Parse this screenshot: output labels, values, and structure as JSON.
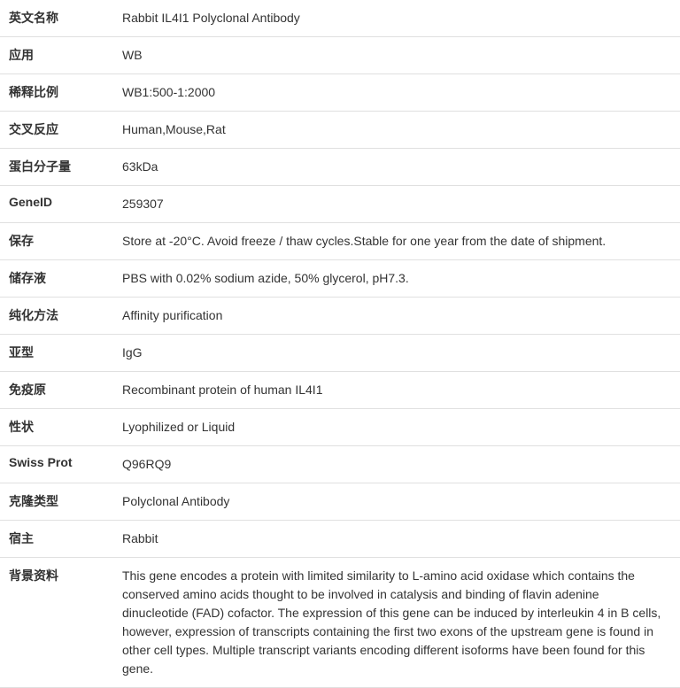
{
  "rows": [
    {
      "label": "英文名称",
      "value": "Rabbit IL4I1 Polyclonal Antibody"
    },
    {
      "label": "应用",
      "value": "WB"
    },
    {
      "label": "稀释比例",
      "value": "WB1:500-1:2000"
    },
    {
      "label": "交叉反应",
      "value": "Human,Mouse,Rat"
    },
    {
      "label": "蛋白分子量",
      "value": "63kDa"
    },
    {
      "label": "GeneID",
      "value": "259307"
    },
    {
      "label": "保存",
      "value": "Store at -20°C. Avoid freeze / thaw cycles.Stable for one year from the date of shipment."
    },
    {
      "label": "储存液",
      "value": "PBS with 0.02% sodium azide, 50% glycerol, pH7.3."
    },
    {
      "label": "纯化方法",
      "value": "Affinity purification"
    },
    {
      "label": "亚型",
      "value": "IgG"
    },
    {
      "label": "免疫原",
      "value": "Recombinant protein of human IL4I1"
    },
    {
      "label": "性状",
      "value": "Lyophilized or Liquid"
    },
    {
      "label": "Swiss Prot",
      "value": "Q96RQ9"
    },
    {
      "label": "克隆类型",
      "value": "Polyclonal Antibody"
    },
    {
      "label": "宿主",
      "value": "Rabbit"
    },
    {
      "label": "背景资料",
      "value": "This gene encodes a protein with limited similarity to L-amino acid oxidase which contains the conserved amino acids thought to be involved in catalysis and binding of flavin adenine dinucleotide (FAD) cofactor. The expression of this gene can be induced by interleukin 4 in B cells, however, expression of transcripts containing the first two exons of the upstream gene is found in other cell types. Multiple transcript variants encoding different isoforms have been found for this gene."
    }
  ],
  "style": {
    "border_color": "#e0e0e0",
    "label_weight": "bold",
    "text_color": "#333333",
    "background_color": "#ffffff",
    "font_size": 14,
    "label_col_width": 130
  }
}
